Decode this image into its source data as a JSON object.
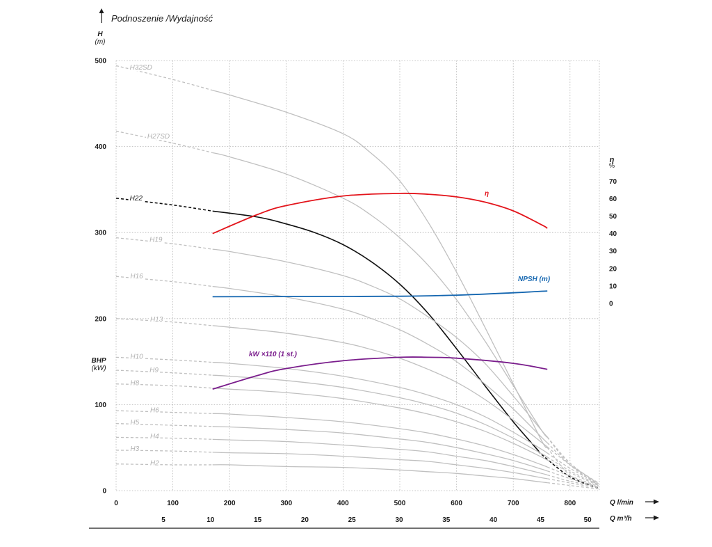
{
  "title": "Podnoszenie /Wydajność",
  "colors": {
    "grid": "#b5b5b5",
    "head_curve": "#c0c0c0",
    "head_label": "#b0b0b0",
    "highlight": "#111111",
    "eta": "#e3141b",
    "npsh": "#1466b0",
    "power": "#7a1d8c",
    "axis": "#1a1a1a"
  },
  "chart_data": {
    "type": "line",
    "axes": {
      "left": {
        "label": "H",
        "unit": "(m)",
        "min": 0,
        "max": 500,
        "ticks": [
          "0",
          "100",
          "200",
          "300",
          "400",
          "500"
        ]
      },
      "left_secondary": {
        "label": "BHP",
        "unit": "(kW)"
      },
      "right": {
        "label": "η",
        "unit": "%",
        "min": 0,
        "max": 70,
        "ticks": [
          "0",
          "10",
          "20",
          "30",
          "40",
          "50",
          "60",
          "70"
        ]
      },
      "bottom": {
        "label": "Q l/min",
        "min": 0,
        "max": 850,
        "ticks": [
          "0",
          "100",
          "200",
          "300",
          "400",
          "500",
          "600",
          "700",
          "800"
        ]
      },
      "bottom_secondary": {
        "label": "Q m³/h",
        "ticks": [
          "5",
          "10",
          "15",
          "20",
          "25",
          "30",
          "35",
          "40",
          "45",
          "50"
        ]
      },
      "grid": true
    },
    "head_curves": [
      {
        "name": "H32SD",
        "points": [
          [
            0,
            494
          ],
          [
            100,
            478
          ],
          [
            200,
            460
          ],
          [
            300,
            440
          ],
          [
            400,
            415
          ],
          [
            450,
            392
          ],
          [
            500,
            360
          ],
          [
            550,
            312
          ],
          [
            600,
            254
          ],
          [
            650,
            190
          ],
          [
            700,
            124
          ],
          [
            750,
            58
          ],
          [
            800,
            18
          ],
          [
            850,
            4
          ]
        ]
      },
      {
        "name": "H27SD",
        "points": [
          [
            0,
            418
          ],
          [
            100,
            404
          ],
          [
            200,
            388
          ],
          [
            300,
            368
          ],
          [
            400,
            340
          ],
          [
            450,
            320
          ],
          [
            500,
            294
          ],
          [
            550,
            262
          ],
          [
            600,
            222
          ],
          [
            650,
            174
          ],
          [
            700,
            122
          ],
          [
            750,
            70
          ],
          [
            800,
            30
          ],
          [
            850,
            6
          ]
        ]
      },
      {
        "name": "H22",
        "points": [
          [
            0,
            340
          ],
          [
            100,
            332
          ],
          [
            170,
            325
          ],
          [
            250,
            318
          ],
          [
            300,
            310
          ],
          [
            350,
            300
          ],
          [
            400,
            286
          ],
          [
            450,
            266
          ],
          [
            500,
            240
          ],
          [
            550,
            206
          ],
          [
            600,
            165
          ],
          [
            650,
            122
          ],
          [
            700,
            80
          ],
          [
            750,
            42
          ],
          [
            800,
            16
          ],
          [
            850,
            3
          ]
        ]
      },
      {
        "name": "H19",
        "points": [
          [
            0,
            294
          ],
          [
            100,
            287
          ],
          [
            200,
            278
          ],
          [
            300,
            266
          ],
          [
            400,
            250
          ],
          [
            450,
            238
          ],
          [
            500,
            223
          ],
          [
            550,
            202
          ],
          [
            600,
            178
          ],
          [
            650,
            148
          ],
          [
            700,
            110
          ],
          [
            750,
            70
          ],
          [
            800,
            32
          ],
          [
            850,
            8
          ]
        ]
      },
      {
        "name": "H16",
        "points": [
          [
            0,
            249
          ],
          [
            100,
            243
          ],
          [
            200,
            235
          ],
          [
            300,
            225
          ],
          [
            400,
            211
          ],
          [
            450,
            200
          ],
          [
            500,
            187
          ],
          [
            550,
            170
          ],
          [
            600,
            150
          ],
          [
            650,
            124
          ],
          [
            700,
            95
          ],
          [
            750,
            62
          ],
          [
            800,
            30
          ],
          [
            850,
            8
          ]
        ]
      },
      {
        "name": "H13",
        "points": [
          [
            0,
            200
          ],
          [
            100,
            196
          ],
          [
            200,
            190
          ],
          [
            300,
            183
          ],
          [
            400,
            172
          ],
          [
            450,
            164
          ],
          [
            500,
            154
          ],
          [
            550,
            141
          ],
          [
            600,
            126
          ],
          [
            650,
            106
          ],
          [
            700,
            82
          ],
          [
            750,
            56
          ],
          [
            800,
            30
          ],
          [
            850,
            9
          ]
        ]
      },
      {
        "name": "H10",
        "points": [
          [
            0,
            155
          ],
          [
            100,
            152
          ],
          [
            200,
            148
          ],
          [
            300,
            142
          ],
          [
            400,
            133
          ],
          [
            500,
            120
          ],
          [
            550,
            111
          ],
          [
            600,
            100
          ],
          [
            650,
            86
          ],
          [
            700,
            68
          ],
          [
            750,
            48
          ],
          [
            800,
            26
          ],
          [
            850,
            8
          ]
        ]
      },
      {
        "name": "H9",
        "points": [
          [
            0,
            140
          ],
          [
            100,
            137
          ],
          [
            200,
            133
          ],
          [
            300,
            128
          ],
          [
            400,
            120
          ],
          [
            500,
            108
          ],
          [
            550,
            100
          ],
          [
            600,
            90
          ],
          [
            650,
            77
          ],
          [
            700,
            61
          ],
          [
            750,
            43
          ],
          [
            800,
            23
          ],
          [
            850,
            7
          ]
        ]
      },
      {
        "name": "H8",
        "points": [
          [
            0,
            124
          ],
          [
            100,
            122
          ],
          [
            200,
            118
          ],
          [
            300,
            114
          ],
          [
            400,
            107
          ],
          [
            500,
            96
          ],
          [
            550,
            89
          ],
          [
            600,
            80
          ],
          [
            650,
            69
          ],
          [
            700,
            55
          ],
          [
            750,
            39
          ],
          [
            800,
            21
          ],
          [
            850,
            6
          ]
        ]
      },
      {
        "name": "H6",
        "points": [
          [
            0,
            93
          ],
          [
            100,
            91
          ],
          [
            200,
            89
          ],
          [
            300,
            85
          ],
          [
            400,
            80
          ],
          [
            500,
            72
          ],
          [
            550,
            67
          ],
          [
            600,
            60
          ],
          [
            650,
            52
          ],
          [
            700,
            42
          ],
          [
            750,
            30
          ],
          [
            800,
            17
          ],
          [
            850,
            5
          ]
        ]
      },
      {
        "name": "H5",
        "points": [
          [
            0,
            78
          ],
          [
            100,
            76
          ],
          [
            200,
            74
          ],
          [
            300,
            71
          ],
          [
            400,
            67
          ],
          [
            500,
            60
          ],
          [
            550,
            56
          ],
          [
            600,
            50
          ],
          [
            650,
            43
          ],
          [
            700,
            35
          ],
          [
            750,
            25
          ],
          [
            800,
            14
          ],
          [
            850,
            4
          ]
        ]
      },
      {
        "name": "H4",
        "points": [
          [
            0,
            62
          ],
          [
            100,
            61
          ],
          [
            200,
            59
          ],
          [
            300,
            57
          ],
          [
            400,
            53
          ],
          [
            500,
            48
          ],
          [
            550,
            45
          ],
          [
            600,
            40
          ],
          [
            650,
            35
          ],
          [
            700,
            28
          ],
          [
            750,
            20
          ],
          [
            800,
            11
          ],
          [
            850,
            4
          ]
        ]
      },
      {
        "name": "H3",
        "points": [
          [
            0,
            47
          ],
          [
            100,
            46
          ],
          [
            200,
            44
          ],
          [
            300,
            43
          ],
          [
            400,
            40
          ],
          [
            500,
            36
          ],
          [
            550,
            34
          ],
          [
            600,
            30
          ],
          [
            650,
            26
          ],
          [
            700,
            21
          ],
          [
            750,
            15
          ],
          [
            800,
            9
          ],
          [
            850,
            3
          ]
        ]
      },
      {
        "name": "H2",
        "points": [
          [
            0,
            31
          ],
          [
            100,
            30
          ],
          [
            200,
            30
          ],
          [
            300,
            28
          ],
          [
            400,
            27
          ],
          [
            500,
            24
          ],
          [
            550,
            22
          ],
          [
            600,
            20
          ],
          [
            650,
            17
          ],
          [
            700,
            14
          ],
          [
            750,
            10
          ],
          [
            800,
            6
          ],
          [
            850,
            2
          ]
        ]
      }
    ],
    "efficiency": {
      "name": "η",
      "unit": "%",
      "points": [
        [
          170,
          40
        ],
        [
          250,
          51
        ],
        [
          300,
          56
        ],
        [
          400,
          61.5
        ],
        [
          500,
          63
        ],
        [
          550,
          62.5
        ],
        [
          600,
          61
        ],
        [
          650,
          58
        ],
        [
          700,
          53
        ],
        [
          750,
          45
        ],
        [
          760,
          43
        ]
      ]
    },
    "npsh": {
      "name": "NPSH (m)",
      "points": [
        [
          170,
          2.3
        ],
        [
          300,
          2.5
        ],
        [
          400,
          2.6
        ],
        [
          500,
          2.8
        ],
        [
          600,
          3.8
        ],
        [
          700,
          6
        ],
        [
          760,
          7.7
        ]
      ]
    },
    "power": {
      "name": "kW ×110 (1 st.)",
      "points": [
        [
          170,
          118
        ],
        [
          250,
          134
        ],
        [
          300,
          142
        ],
        [
          400,
          151
        ],
        [
          500,
          155
        ],
        [
          550,
          155
        ],
        [
          600,
          154
        ],
        [
          700,
          148
        ],
        [
          760,
          141
        ]
      ]
    }
  }
}
